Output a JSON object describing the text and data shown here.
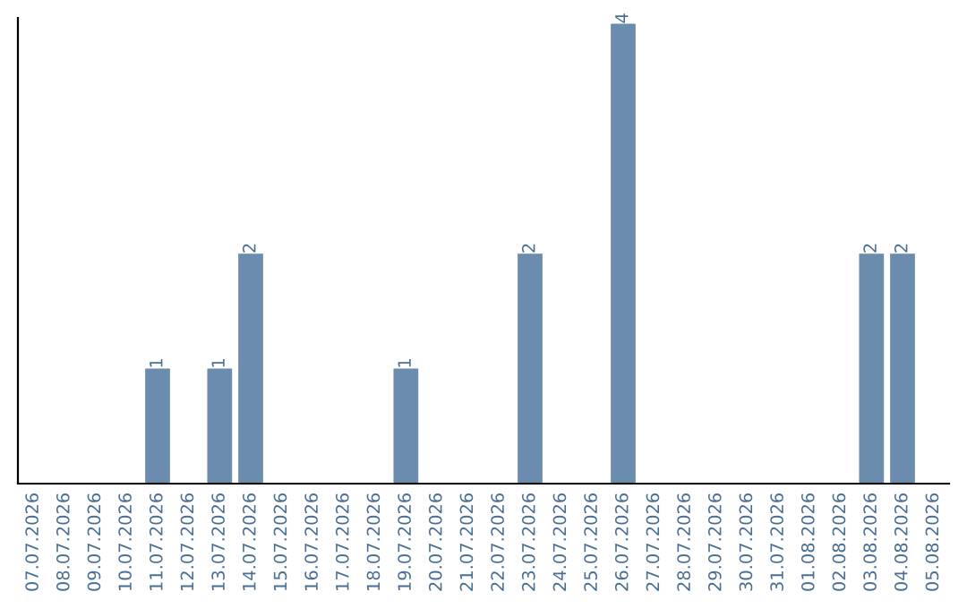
{
  "chart_data": {
    "type": "bar",
    "categories": [
      "07.07.2026",
      "08.07.2026",
      "09.07.2026",
      "10.07.2026",
      "11.07.2026",
      "12.07.2026",
      "13.07.2026",
      "14.07.2026",
      "15.07.2026",
      "16.07.2026",
      "17.07.2026",
      "18.07.2026",
      "19.07.2026",
      "20.07.2026",
      "21.07.2026",
      "22.07.2026",
      "23.07.2026",
      "24.07.2026",
      "25.07.2026",
      "26.07.2026",
      "27.07.2026",
      "28.07.2026",
      "29.07.2026",
      "30.07.2026",
      "31.07.2026",
      "01.08.2026",
      "02.08.2026",
      "03.08.2026",
      "04.08.2026",
      "05.08.2026"
    ],
    "values": [
      0,
      0,
      0,
      0,
      1,
      0,
      1,
      2,
      0,
      0,
      0,
      0,
      1,
      0,
      0,
      0,
      2,
      0,
      0,
      4,
      0,
      0,
      0,
      0,
      0,
      0,
      0,
      2,
      2,
      0
    ],
    "color": "#6b8cac",
    "ylim": [
      0,
      4.05
    ],
    "value_labels": [
      null,
      null,
      null,
      null,
      "1",
      null,
      "1",
      "2",
      null,
      null,
      null,
      null,
      "1",
      null,
      null,
      null,
      "2",
      null,
      null,
      "4",
      null,
      null,
      null,
      null,
      null,
      null,
      null,
      "2",
      "2",
      null
    ],
    "grid": false,
    "legend": false,
    "tick_labels": "x"
  }
}
